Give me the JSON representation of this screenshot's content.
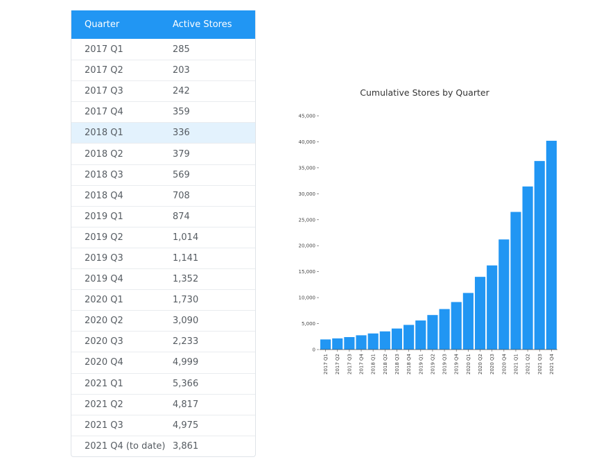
{
  "table": {
    "header": {
      "quarter": "Quarter",
      "stores": "Active Stores"
    },
    "highlighted_row": 4,
    "rows": [
      {
        "quarter": "2017 Q1",
        "stores": "285"
      },
      {
        "quarter": "2017 Q2",
        "stores": "203"
      },
      {
        "quarter": "2017 Q3",
        "stores": "242"
      },
      {
        "quarter": "2017 Q4",
        "stores": "359"
      },
      {
        "quarter": "2018 Q1",
        "stores": "336"
      },
      {
        "quarter": "2018 Q2",
        "stores": "379"
      },
      {
        "quarter": "2018 Q3",
        "stores": "569"
      },
      {
        "quarter": "2018 Q4",
        "stores": "708"
      },
      {
        "quarter": "2019 Q1",
        "stores": "874"
      },
      {
        "quarter": "2019 Q2",
        "stores": "1,014"
      },
      {
        "quarter": "2019 Q3",
        "stores": "1,141"
      },
      {
        "quarter": "2019 Q4",
        "stores": "1,352"
      },
      {
        "quarter": "2020 Q1",
        "stores": "1,730"
      },
      {
        "quarter": "2020 Q2",
        "stores": "3,090"
      },
      {
        "quarter": "2020 Q3",
        "stores": "2,233"
      },
      {
        "quarter": "2020 Q4",
        "stores": "4,999"
      },
      {
        "quarter": "2021 Q1",
        "stores": "5,366"
      },
      {
        "quarter": "2021 Q2",
        "stores": "4,817"
      },
      {
        "quarter": "2021 Q3",
        "stores": "4,975"
      },
      {
        "quarter": "2021 Q4 (to date)",
        "stores": "3,861"
      }
    ]
  },
  "colors": {
    "accent": "#2196f3",
    "highlight": "#e3f2fd"
  },
  "chart_data": {
    "type": "bar",
    "title": "Cumulative Stores by Quarter",
    "xlabel": "",
    "ylabel": "",
    "ylim": [
      0,
      45000
    ],
    "yticks": [
      0,
      5000,
      10000,
      15000,
      20000,
      25000,
      30000,
      35000,
      40000,
      45000
    ],
    "ytick_labels": [
      "0",
      "5,000",
      "10,000",
      "15,000",
      "20,000",
      "25,000",
      "30,000",
      "35,000",
      "40,000",
      "45,000"
    ],
    "categories": [
      "2017 Q1",
      "2017 Q2",
      "2017 Q3",
      "2017 Q4",
      "2018 Q1",
      "2018 Q2",
      "2018 Q3",
      "2018 Q4",
      "2019 Q1",
      "2019 Q2",
      "2019 Q3",
      "2019 Q4",
      "2020 Q1",
      "2020 Q2",
      "2020 Q3",
      "2020 Q4",
      "2021 Q1",
      "2021 Q2",
      "2021 Q3",
      "2021 Q4"
    ],
    "values": [
      1950,
      2150,
      2400,
      2750,
      3100,
      3500,
      4050,
      4750,
      5600,
      6650,
      7800,
      9150,
      10900,
      14000,
      16200,
      21200,
      26500,
      31400,
      36300,
      40200
    ],
    "grid": false,
    "color": "#2196f3"
  }
}
